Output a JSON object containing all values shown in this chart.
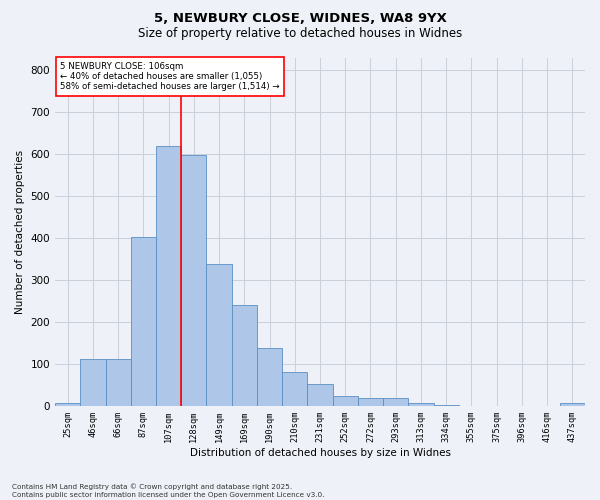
{
  "title_line1": "5, NEWBURY CLOSE, WIDNES, WA8 9YX",
  "title_line2": "Size of property relative to detached houses in Widnes",
  "xlabel": "Distribution of detached houses by size in Widnes",
  "ylabel": "Number of detached properties",
  "bar_labels": [
    "25sqm",
    "46sqm",
    "66sqm",
    "87sqm",
    "107sqm",
    "128sqm",
    "149sqm",
    "169sqm",
    "190sqm",
    "210sqm",
    "231sqm",
    "252sqm",
    "272sqm",
    "293sqm",
    "313sqm",
    "334sqm",
    "355sqm",
    "375sqm",
    "396sqm",
    "416sqm",
    "437sqm"
  ],
  "bar_values": [
    5,
    110,
    110,
    403,
    620,
    598,
    337,
    240,
    138,
    80,
    52,
    22,
    17,
    17,
    5,
    2,
    0,
    0,
    0,
    0,
    5
  ],
  "bar_color": "#aec6e8",
  "bar_edge_color": "#5a8fc4",
  "grid_color": "#c8d0dc",
  "vline_x": 4.5,
  "vline_color": "red",
  "annotation_text": "5 NEWBURY CLOSE: 106sqm\n← 40% of detached houses are smaller (1,055)\n58% of semi-detached houses are larger (1,514) →",
  "annotation_box_color": "white",
  "annotation_box_edge": "red",
  "ylim": [
    0,
    830
  ],
  "yticks": [
    0,
    100,
    200,
    300,
    400,
    500,
    600,
    700,
    800
  ],
  "footer_text": "Contains HM Land Registry data © Crown copyright and database right 2025.\nContains public sector information licensed under the Open Government Licence v3.0.",
  "bg_color": "#eef2f8"
}
